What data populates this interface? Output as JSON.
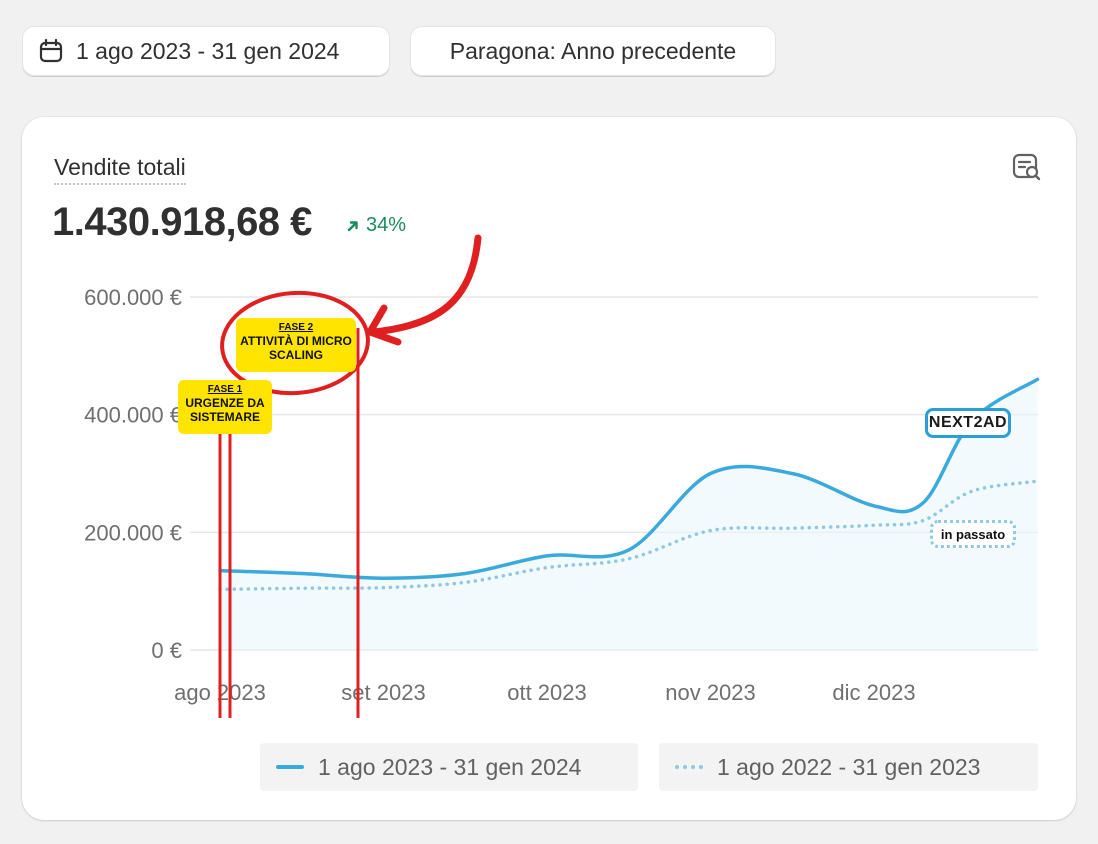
{
  "toolbar": {
    "date_range": "1 ago 2023 - 31 gen 2024",
    "compare": "Paragona: Anno precedente"
  },
  "card": {
    "title": "Vendite totali",
    "value": "1.430.918,68 €",
    "delta": "34%",
    "delta_color": "#1c8a5a"
  },
  "icons": {
    "calendar": "calendar-icon",
    "explore": "explore-chart-icon",
    "trend": "arrow-up-right-icon"
  },
  "annotations": {
    "phase1_label": "FASE 1",
    "phase1_text": "URGENZE DA SISTEMARE",
    "phase2_label": "FASE 2",
    "phase2_text": "ATTIVITÀ DI MICRO SCALING",
    "brand": "NEXT2AD",
    "past": "in passato",
    "note_color": "#ffe400",
    "marker_color": "#e02020"
  },
  "legend": {
    "current": "1 ago 2023 - 31 gen 2024",
    "previous": "1 ago 2022 - 31 gen 2023"
  },
  "chart_data": {
    "type": "line",
    "y_ticks": [
      "600.000 €",
      "400.000 €",
      "200.000 €",
      "0 €"
    ],
    "x_ticks": [
      "ago 2023",
      "set 2023",
      "ott 2023",
      "nov 2023",
      "dic 2023"
    ],
    "ylim": [
      0,
      600000
    ],
    "xlim": [
      0,
      5
    ],
    "series": [
      {
        "name": "1 ago 2023 - 31 gen 2024",
        "color": "#3aa9dc",
        "style": "solid",
        "x": [
          0,
          0.5,
          1,
          1.5,
          2,
          2.5,
          3,
          3.5,
          4,
          4.3,
          4.6,
          5
        ],
        "values": [
          135000,
          130000,
          122000,
          130000,
          160000,
          170000,
          300000,
          300000,
          245000,
          250000,
          390000,
          460000
        ]
      },
      {
        "name": "1 ago 2022 - 31 gen 2023",
        "color": "#8ec8e6",
        "style": "dotted",
        "x": [
          0,
          0.5,
          1,
          1.5,
          2,
          2.5,
          3,
          3.5,
          4,
          4.3,
          4.6,
          5
        ],
        "values": [
          103000,
          105000,
          106000,
          115000,
          140000,
          155000,
          203000,
          207000,
          212000,
          220000,
          270000,
          287000
        ]
      }
    ]
  }
}
